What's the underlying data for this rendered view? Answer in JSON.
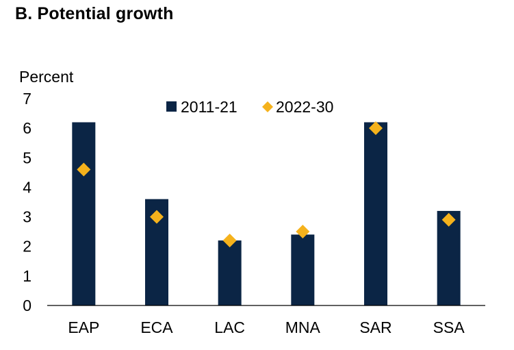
{
  "header": {
    "title": "B. Potential growth"
  },
  "chart_data": {
    "type": "bar",
    "title": "B. Potential growth",
    "ylabel": "Percent",
    "xlabel": "",
    "categories": [
      "EAP",
      "ECA",
      "LAC",
      "MNA",
      "SAR",
      "SSA"
    ],
    "ylim": [
      0,
      7
    ],
    "yticks": [
      0,
      1,
      2,
      3,
      4,
      5,
      6,
      7
    ],
    "grid": false,
    "legend_position": "top-center",
    "series": [
      {
        "name": "2011-21",
        "type": "bar",
        "marker": "square",
        "color": "#0b2545",
        "values": [
          6.2,
          3.6,
          2.2,
          2.4,
          6.2,
          3.2
        ]
      },
      {
        "name": "2022-30",
        "type": "scatter",
        "marker": "diamond",
        "color": "#f5b21c",
        "values": [
          4.6,
          3.0,
          2.2,
          2.5,
          6.0,
          2.9
        ]
      }
    ]
  }
}
